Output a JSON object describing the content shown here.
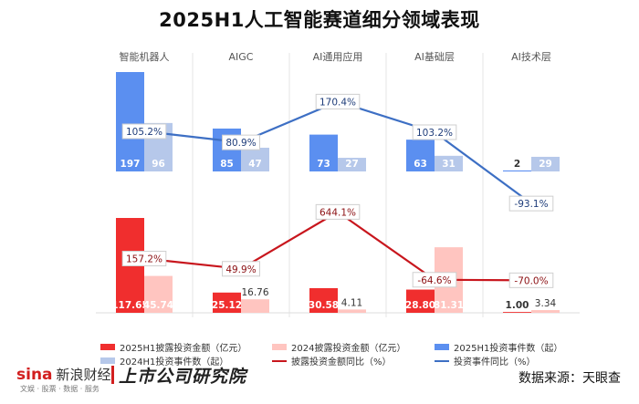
{
  "title": "2025H1人工智能赛道细分领域表现",
  "chart_data": {
    "type": "bar",
    "categories": [
      "智能机器人",
      "AIGC",
      "AI通用应用",
      "AI基础层",
      "AI技术层"
    ],
    "series": [
      {
        "name": "2025H1披露投资金额（亿元）",
        "values": [
          117.65,
          25.12,
          30.58,
          28.8,
          1.0
        ],
        "color": "#f02e2e",
        "panel": "bottom"
      },
      {
        "name": "2024披露投资金额（亿元）",
        "values": [
          45.74,
          16.76,
          4.11,
          81.31,
          3.34
        ],
        "color": "#ffc5c0",
        "panel": "bottom"
      },
      {
        "name": "2025H1投资事件数（起）",
        "values": [
          197,
          85,
          73,
          63,
          2
        ],
        "color": "#5b8ff0",
        "panel": "top"
      },
      {
        "name": "2024H1投资事件数（起）",
        "values": [
          96,
          47,
          27,
          31,
          29
        ],
        "color": "#b6c8ea",
        "panel": "top"
      },
      {
        "name": "披露投资金额同比（%）",
        "values": [
          157.2,
          49.9,
          644.1,
          -64.6,
          -70.0
        ],
        "color": "#c8161d",
        "type": "line",
        "panel": "bottom"
      },
      {
        "name": "投资事件同比（%）",
        "values": [
          105.2,
          80.9,
          170.4,
          103.2,
          -93.1
        ],
        "color": "#3d6fc4",
        "type": "line",
        "panel": "top"
      }
    ],
    "labels": {
      "amount_2025": [
        "117.65",
        "25.12",
        "30.58",
        "28.80",
        "1.00"
      ],
      "amount_2024": [
        "45.74",
        "16.76",
        "4.11",
        "81.31",
        "3.34"
      ],
      "events_2025": [
        "197",
        "85",
        "73",
        "63",
        "2"
      ],
      "events_2024": [
        "96",
        "47",
        "27",
        "31",
        "29"
      ],
      "amount_yoy": [
        "157.2%",
        "49.9%",
        "644.1%",
        "-64.6%",
        "-70.0%"
      ],
      "events_yoy": [
        "105.2%",
        "80.9%",
        "170.4%",
        "103.2%",
        "-93.1%"
      ]
    },
    "legend_placement": "bottom",
    "grid": false
  },
  "footer": {
    "logo": "sina",
    "logo_sub": "新浪财经",
    "tagline": "文娱 · 股票 · 数据 · 服务",
    "brand": "上市公司研究院",
    "source": "数据来源：天眼查"
  }
}
